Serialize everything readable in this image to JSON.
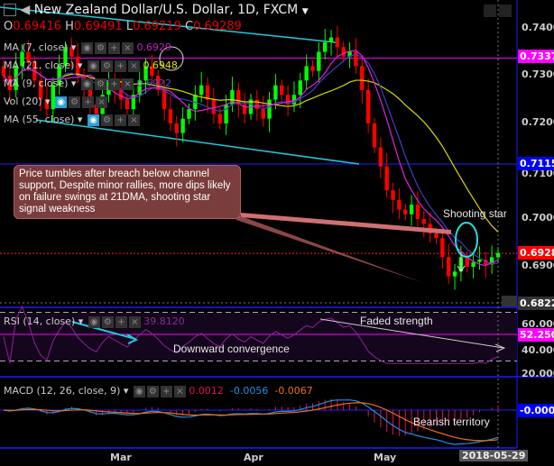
{
  "header": {
    "title": "New Zealand Dollar/U.S. Dollar, 1D, FXCM",
    "ohlc": {
      "o_label": "O",
      "o": "0.69416",
      "h_label": "H",
      "h": "0.69491",
      "l_label": "L",
      "l": "0.69219",
      "c_label": "C",
      "c": "0.69289"
    }
  },
  "indicators": [
    {
      "label": "MA (7, close)",
      "value": "0.6929",
      "color": "#e020e0"
    },
    {
      "label": "MA (21, close)",
      "value": "0.6948",
      "color": "#e0e000"
    },
    {
      "label": "MA (9, close)",
      "value": "0.6922",
      "color": "#4848c8"
    },
    {
      "label": "Vol (20)",
      "value": ""
    },
    {
      "label": "MA (55, close)",
      "value": ""
    }
  ],
  "rsi": {
    "label": "RSI (14, close)",
    "value": "39.8120",
    "tag": "52.2500",
    "ticks": [
      "60.0000",
      "40.0000",
      "20.0000"
    ]
  },
  "macd": {
    "label": "MACD (12, 26, close, 9)",
    "hist": "0.0012",
    "macd": "-0.0056",
    "signal": "-0.0067",
    "tag": "-0.0000"
  },
  "price_axis": {
    "ticks": [
      "0.7400",
      "0.7300",
      "0.7200",
      "0.7100",
      "0.7000",
      "0.6900"
    ],
    "tags": [
      {
        "text": "0.7337",
        "color": "#ff00ff"
      },
      {
        "text": "0.7115",
        "color": "#0000ff"
      },
      {
        "text": "0.6928",
        "color": "#ff0000"
      },
      {
        "text": "0.6822",
        "color": "#333333"
      }
    ]
  },
  "time_axis": {
    "ticks": [
      "Mar",
      "Apr",
      "May"
    ],
    "cursor_date": "2018-05-29"
  },
  "annotations": {
    "note": "Price tumbles after breach below channel support, Despite minor rallies, more dips likely on failure swings at 21DMA, shooting star signal weakness",
    "shooting_star": "Shooting star",
    "faded": "Faded strength",
    "downward": "Downward convergence",
    "bearish": "Bearish territory"
  },
  "colors": {
    "up": "#00ff00",
    "down": "#ff0000",
    "channel": "#22c8e0",
    "rsi": "#9020a0"
  },
  "chart_data": {
    "type": "candlestick",
    "title": "New Zealand Dollar/U.S. Dollar, 1D, FXCM",
    "ylim": [
      0.6822,
      0.744
    ],
    "x_ticks": [
      "Mar",
      "Apr",
      "May"
    ],
    "last_date": "2018-05-29",
    "close": [
      0.73,
      0.727,
      0.732,
      0.735,
      0.733,
      0.729,
      0.725,
      0.723,
      0.728,
      0.732,
      0.736,
      0.734,
      0.73,
      0.727,
      0.724,
      0.722,
      0.726,
      0.729,
      0.727,
      0.725,
      0.723,
      0.726,
      0.729,
      0.732,
      0.73,
      0.727,
      0.723,
      0.72,
      0.718,
      0.721,
      0.723,
      0.726,
      0.728,
      0.725,
      0.722,
      0.72,
      0.724,
      0.727,
      0.724,
      0.722,
      0.725,
      0.723,
      0.721,
      0.725,
      0.728,
      0.726,
      0.724,
      0.726,
      0.729,
      0.732,
      0.731,
      0.735,
      0.737,
      0.738,
      0.736,
      0.734,
      0.735,
      0.732,
      0.727,
      0.72,
      0.715,
      0.711,
      0.706,
      0.704,
      0.702,
      0.701,
      0.703,
      0.7,
      0.699,
      0.697,
      0.696,
      0.692,
      0.688,
      0.689,
      0.692,
      0.69,
      0.691,
      0.6915,
      0.6905,
      0.692,
      0.6929
    ],
    "horizontal_levels": [
      0.7337,
      0.7115,
      0.6928
    ],
    "rsi_levels": [
      70,
      30
    ]
  }
}
